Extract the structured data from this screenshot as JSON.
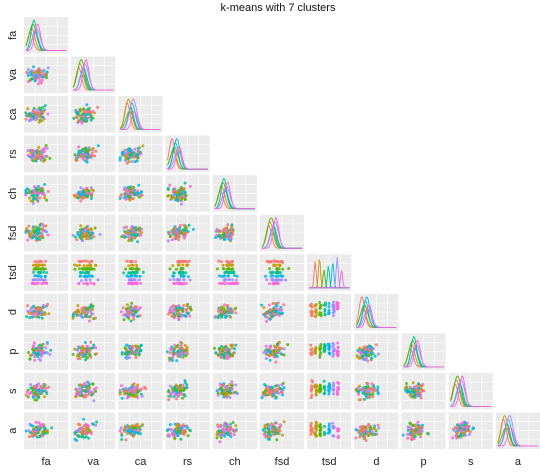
{
  "chart_data": {
    "type": "scatter",
    "title": "k-means with 7 clusters",
    "variables": [
      "fa",
      "va",
      "ca",
      "rs",
      "ch",
      "fsd",
      "tsd",
      "d",
      "p",
      "s",
      "a"
    ],
    "layout": "lower-triangle scatterplot matrix with density curves on the diagonal",
    "clusters": 7,
    "cluster_colors": [
      "#f8766d",
      "#c49a00",
      "#53b400",
      "#00c094",
      "#00b6eb",
      "#a58aff",
      "#fb61d7"
    ],
    "panel_background": "#ebebeb",
    "grid": true
  }
}
